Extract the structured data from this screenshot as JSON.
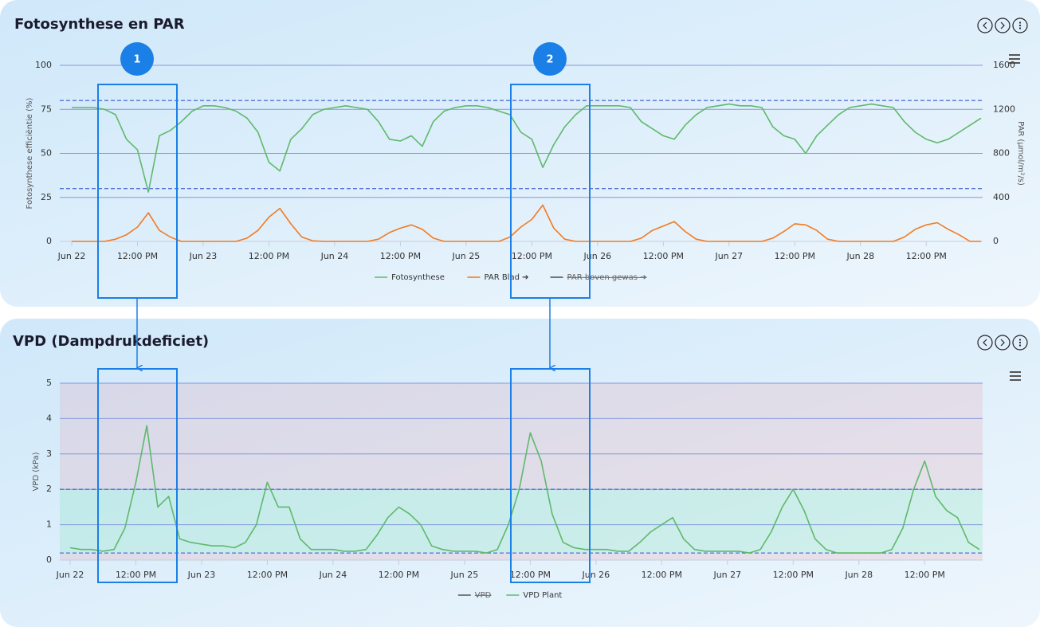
{
  "chart_data": [
    {
      "type": "line",
      "title": "Fotosynthese en PAR",
      "y_label": "Fotosynthese efficiëntie (%)",
      "y2_label": "PAR (µmol/m²/s)",
      "x": [
        "Jun 22 00:00",
        "Jun 22 02:00",
        "Jun 22 04:00",
        "Jun 22 06:00",
        "Jun 22 08:00",
        "Jun 22 10:00",
        "Jun 22 12:00",
        "Jun 22 14:00",
        "Jun 22 16:00",
        "Jun 22 18:00",
        "Jun 22 20:00",
        "Jun 22 22:00",
        "Jun 23 00:00",
        "Jun 23 02:00",
        "Jun 23 04:00",
        "Jun 23 06:00",
        "Jun 23 08:00",
        "Jun 23 10:00",
        "Jun 23 12:00",
        "Jun 23 14:00",
        "Jun 23 16:00",
        "Jun 23 18:00",
        "Jun 23 20:00",
        "Jun 23 22:00",
        "Jun 24 00:00",
        "Jun 24 02:00",
        "Jun 24 04:00",
        "Jun 24 06:00",
        "Jun 24 08:00",
        "Jun 24 10:00",
        "Jun 24 12:00",
        "Jun 24 14:00",
        "Jun 24 16:00",
        "Jun 24 18:00",
        "Jun 24 20:00",
        "Jun 24 22:00",
        "Jun 25 00:00",
        "Jun 25 02:00",
        "Jun 25 04:00",
        "Jun 25 06:00",
        "Jun 25 08:00",
        "Jun 25 10:00",
        "Jun 25 12:00",
        "Jun 25 14:00",
        "Jun 25 16:00",
        "Jun 25 18:00",
        "Jun 25 20:00",
        "Jun 25 22:00",
        "Jun 26 00:00",
        "Jun 26 02:00",
        "Jun 26 04:00",
        "Jun 26 06:00",
        "Jun 26 08:00",
        "Jun 26 10:00",
        "Jun 26 12:00",
        "Jun 26 14:00",
        "Jun 26 16:00",
        "Jun 26 18:00",
        "Jun 26 20:00",
        "Jun 26 22:00",
        "Jun 27 00:00",
        "Jun 27 02:00",
        "Jun 27 04:00",
        "Jun 27 06:00",
        "Jun 27 08:00",
        "Jun 27 10:00",
        "Jun 27 12:00",
        "Jun 27 14:00",
        "Jun 27 16:00",
        "Jun 27 18:00",
        "Jun 27 20:00",
        "Jun 27 22:00",
        "Jun 28 00:00",
        "Jun 28 02:00",
        "Jun 28 04:00",
        "Jun 28 06:00",
        "Jun 28 08:00",
        "Jun 28 10:00",
        "Jun 28 12:00",
        "Jun 28 14:00",
        "Jun 28 16:00",
        "Jun 28 18:00",
        "Jun 28 20:00",
        "Jun 28 22:00"
      ],
      "series": [
        {
          "name": "Fotosynthese",
          "color": "#5fb96b",
          "values": [
            76,
            76,
            76,
            75,
            72,
            58,
            52,
            28,
            60,
            63,
            68,
            74,
            77,
            77,
            76,
            74,
            70,
            62,
            45,
            40,
            58,
            64,
            72,
            75,
            76,
            77,
            76,
            75,
            68,
            58,
            57,
            60,
            54,
            68,
            74,
            76,
            77,
            77,
            76,
            74,
            72,
            62,
            58,
            42,
            55,
            65,
            72,
            77,
            77,
            77,
            77,
            76,
            68,
            64,
            60,
            58,
            66,
            72,
            76,
            77,
            78,
            77,
            77,
            76,
            65,
            60,
            58,
            50,
            60,
            66,
            72,
            76,
            77,
            78,
            77,
            76,
            68,
            62,
            58,
            56,
            58,
            62,
            66,
            70
          ]
        },
        {
          "name": "PAR Blad ➔",
          "color": "#f47a1f",
          "axis": "y2",
          "values": [
            0,
            0,
            0,
            0,
            20,
            60,
            130,
            260,
            100,
            40,
            0,
            0,
            0,
            0,
            0,
            0,
            30,
            100,
            220,
            300,
            160,
            40,
            5,
            0,
            0,
            0,
            0,
            0,
            20,
            80,
            120,
            150,
            110,
            30,
            0,
            0,
            0,
            0,
            0,
            0,
            40,
            130,
            200,
            330,
            120,
            20,
            0,
            0,
            0,
            0,
            0,
            0,
            30,
            100,
            140,
            180,
            90,
            20,
            0,
            0,
            0,
            0,
            0,
            0,
            30,
            90,
            160,
            150,
            100,
            20,
            0,
            0,
            0,
            0,
            0,
            0,
            40,
            110,
            150,
            170,
            110,
            60,
            0,
            0
          ]
        },
        {
          "name": "PAR boven gewas ➔",
          "color": "#555555",
          "axis": "y2",
          "hidden": true
        }
      ],
      "xlim": [
        "Jun 22 00:00",
        "Jun 28 22:00"
      ],
      "xticks": [
        {
          "value": "Jun 22 00:00",
          "label": "Jun 22"
        },
        {
          "value": "Jun 22 12:00",
          "label": "12:00 PM"
        },
        {
          "value": "Jun 23 00:00",
          "label": "Jun 23"
        },
        {
          "value": "Jun 23 12:00",
          "label": "12:00 PM"
        },
        {
          "value": "Jun 24 00:00",
          "label": "Jun 24"
        },
        {
          "value": "Jun 24 12:00",
          "label": "12:00 PM"
        },
        {
          "value": "Jun 25 00:00",
          "label": "Jun 25"
        },
        {
          "value": "Jun 25 12:00",
          "label": "12:00 PM"
        },
        {
          "value": "Jun 26 00:00",
          "label": "Jun 26"
        },
        {
          "value": "Jun 26 12:00",
          "label": "12:00 PM"
        },
        {
          "value": "Jun 27 00:00",
          "label": "Jun 27"
        },
        {
          "value": "Jun 27 12:00",
          "label": "12:00 PM"
        },
        {
          "value": "Jun 28 00:00",
          "label": "Jun 28"
        },
        {
          "value": "Jun 28 12:00",
          "label": "12:00 PM"
        }
      ],
      "ylim": [
        0,
        100
      ],
      "yticks": [
        0,
        25,
        50,
        75,
        100
      ],
      "y2lim": [
        0,
        1600
      ],
      "y2ticks": [
        0,
        400,
        800,
        1200,
        1600
      ],
      "plot_lines": [
        80,
        30
      ],
      "grid": true,
      "annotations": [
        "1",
        "2"
      ]
    },
    {
      "type": "line",
      "title": "VPD (Dampdrukdeficiet)",
      "y_label": "VPD (kPa)",
      "x": [
        "Jun 22 00:00",
        "Jun 22 02:00",
        "Jun 22 04:00",
        "Jun 22 06:00",
        "Jun 22 08:00",
        "Jun 22 10:00",
        "Jun 22 12:00",
        "Jun 22 14:00",
        "Jun 22 16:00",
        "Jun 22 18:00",
        "Jun 22 20:00",
        "Jun 22 22:00",
        "Jun 23 00:00",
        "Jun 23 02:00",
        "Jun 23 04:00",
        "Jun 23 06:00",
        "Jun 23 08:00",
        "Jun 23 10:00",
        "Jun 23 12:00",
        "Jun 23 14:00",
        "Jun 23 16:00",
        "Jun 23 18:00",
        "Jun 23 20:00",
        "Jun 23 22:00",
        "Jun 24 00:00",
        "Jun 24 02:00",
        "Jun 24 04:00",
        "Jun 24 06:00",
        "Jun 24 08:00",
        "Jun 24 10:00",
        "Jun 24 12:00",
        "Jun 24 14:00",
        "Jun 24 16:00",
        "Jun 24 18:00",
        "Jun 24 20:00",
        "Jun 24 22:00",
        "Jun 25 00:00",
        "Jun 25 02:00",
        "Jun 25 04:00",
        "Jun 25 06:00",
        "Jun 25 08:00",
        "Jun 25 10:00",
        "Jun 25 12:00",
        "Jun 25 14:00",
        "Jun 25 16:00",
        "Jun 25 18:00",
        "Jun 25 20:00",
        "Jun 25 22:00",
        "Jun 26 00:00",
        "Jun 26 02:00",
        "Jun 26 04:00",
        "Jun 26 06:00",
        "Jun 26 08:00",
        "Jun 26 10:00",
        "Jun 26 12:00",
        "Jun 26 14:00",
        "Jun 26 16:00",
        "Jun 26 18:00",
        "Jun 26 20:00",
        "Jun 26 22:00",
        "Jun 27 00:00",
        "Jun 27 02:00",
        "Jun 27 04:00",
        "Jun 27 06:00",
        "Jun 27 08:00",
        "Jun 27 10:00",
        "Jun 27 12:00",
        "Jun 27 14:00",
        "Jun 27 16:00",
        "Jun 27 18:00",
        "Jun 27 20:00",
        "Jun 27 22:00",
        "Jun 28 00:00",
        "Jun 28 02:00",
        "Jun 28 04:00",
        "Jun 28 06:00",
        "Jun 28 08:00",
        "Jun 28 10:00",
        "Jun 28 12:00",
        "Jun 28 14:00",
        "Jun 28 16:00",
        "Jun 28 18:00",
        "Jun 28 20:00",
        "Jun 28 22:00"
      ],
      "series": [
        {
          "name": "VPD",
          "color": "#555555",
          "hidden": true
        },
        {
          "name": "VPD Plant",
          "color": "#5fb96b",
          "values": [
            0.35,
            0.3,
            0.3,
            0.25,
            0.3,
            0.9,
            2.2,
            3.8,
            1.5,
            1.8,
            0.6,
            0.5,
            0.45,
            0.4,
            0.4,
            0.35,
            0.5,
            1.0,
            2.2,
            1.5,
            1.5,
            0.6,
            0.3,
            0.3,
            0.3,
            0.25,
            0.25,
            0.3,
            0.7,
            1.2,
            1.5,
            1.3,
            1.0,
            0.4,
            0.3,
            0.25,
            0.25,
            0.25,
            0.2,
            0.3,
            1.0,
            2.0,
            3.6,
            2.8,
            1.3,
            0.5,
            0.35,
            0.3,
            0.3,
            0.3,
            0.25,
            0.25,
            0.5,
            0.8,
            1.0,
            1.2,
            0.6,
            0.3,
            0.25,
            0.25,
            0.25,
            0.25,
            0.2,
            0.3,
            0.8,
            1.5,
            2.0,
            1.4,
            0.6,
            0.3,
            0.2,
            0.2,
            0.2,
            0.2,
            0.2,
            0.3,
            0.9,
            2.0,
            2.8,
            1.8,
            1.4,
            1.2,
            0.5,
            0.3
          ]
        }
      ],
      "xlim": [
        "Jun 22 00:00",
        "Jun 28 22:00"
      ],
      "xticks": [
        {
          "value": "Jun 22 00:00",
          "label": "Jun 22"
        },
        {
          "value": "Jun 22 12:00",
          "label": "12:00 PM"
        },
        {
          "value": "Jun 23 00:00",
          "label": "Jun 23"
        },
        {
          "value": "Jun 23 12:00",
          "label": "12:00 PM"
        },
        {
          "value": "Jun 24 00:00",
          "label": "Jun 24"
        },
        {
          "value": "Jun 24 12:00",
          "label": "12:00 PM"
        },
        {
          "value": "Jun 25 00:00",
          "label": "Jun 25"
        },
        {
          "value": "Jun 25 12:00",
          "label": "12:00 PM"
        },
        {
          "value": "Jun 26 00:00",
          "label": "Jun 26"
        },
        {
          "value": "Jun 26 12:00",
          "label": "12:00 PM"
        },
        {
          "value": "Jun 27 00:00",
          "label": "Jun 27"
        },
        {
          "value": "Jun 27 12:00",
          "label": "12:00 PM"
        },
        {
          "value": "Jun 28 00:00",
          "label": "Jun 28"
        },
        {
          "value": "Jun 28 12:00",
          "label": "12:00 PM"
        }
      ],
      "ylim": [
        0,
        5
      ],
      "yticks": [
        0,
        1,
        2,
        3,
        4,
        5
      ],
      "bands": [
        {
          "from": 2,
          "to": 5,
          "color": "#e98a9a"
        },
        {
          "from": 0.2,
          "to": 2,
          "color": "#5fe0a0"
        },
        {
          "from": 0,
          "to": 0.2,
          "color": "#e98a9a"
        }
      ],
      "plot_lines": [
        2,
        0.2
      ],
      "grid": true
    }
  ]
}
